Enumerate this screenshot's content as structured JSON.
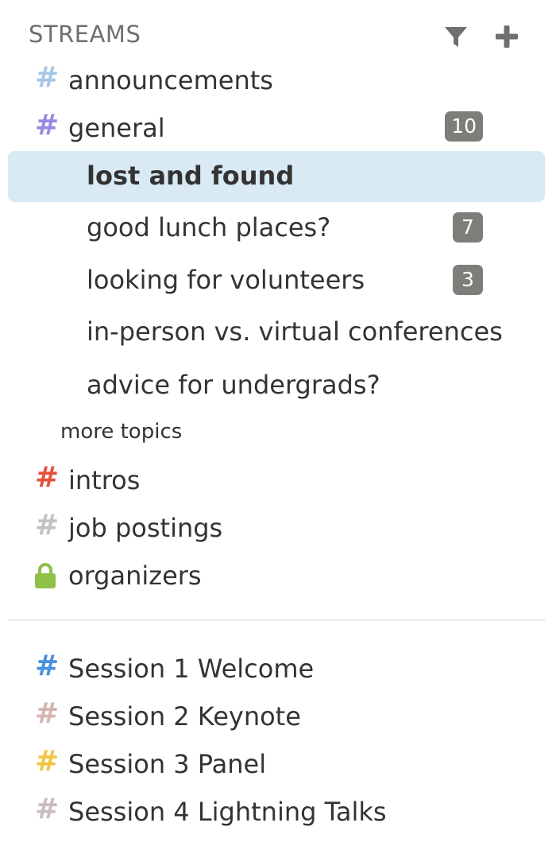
{
  "header": {
    "title": "STREAMS",
    "filter_icon": "filter-icon",
    "add_icon": "plus-icon"
  },
  "streams": [
    {
      "name": "announcements",
      "icon": "hash-icon",
      "color": "#a6c7e5"
    },
    {
      "name": "general",
      "icon": "hash-icon",
      "color": "#9987e1",
      "unread": "10"
    }
  ],
  "topics": [
    {
      "name": "lost and found",
      "selected": true
    },
    {
      "name": "good lunch places?",
      "unread": "7"
    },
    {
      "name": "looking for volunteers",
      "unread": "3"
    },
    {
      "name": "in-person vs. virtual conferences"
    },
    {
      "name": "advice for undergrads?"
    }
  ],
  "more_topics_label": "more topics",
  "streams_after": [
    {
      "name": "intros",
      "icon": "hash-icon",
      "color": "#e4523d"
    },
    {
      "name": "job postings",
      "icon": "hash-icon",
      "color": "#c2c2c2"
    },
    {
      "name": "organizers",
      "icon": "lock-icon",
      "color": "#8fc04a"
    }
  ],
  "sessions": [
    {
      "name": "Session 1 Welcome",
      "icon": "hash-icon",
      "color": "#4a8fe0"
    },
    {
      "name": "Session 2 Keynote",
      "icon": "hash-icon",
      "color": "#d5b4b4"
    },
    {
      "name": "Session 3 Panel",
      "icon": "hash-icon",
      "color": "#f0c542"
    },
    {
      "name": "Session 4 Lightning Talks",
      "icon": "hash-icon",
      "color": "#c8bebf"
    }
  ]
}
